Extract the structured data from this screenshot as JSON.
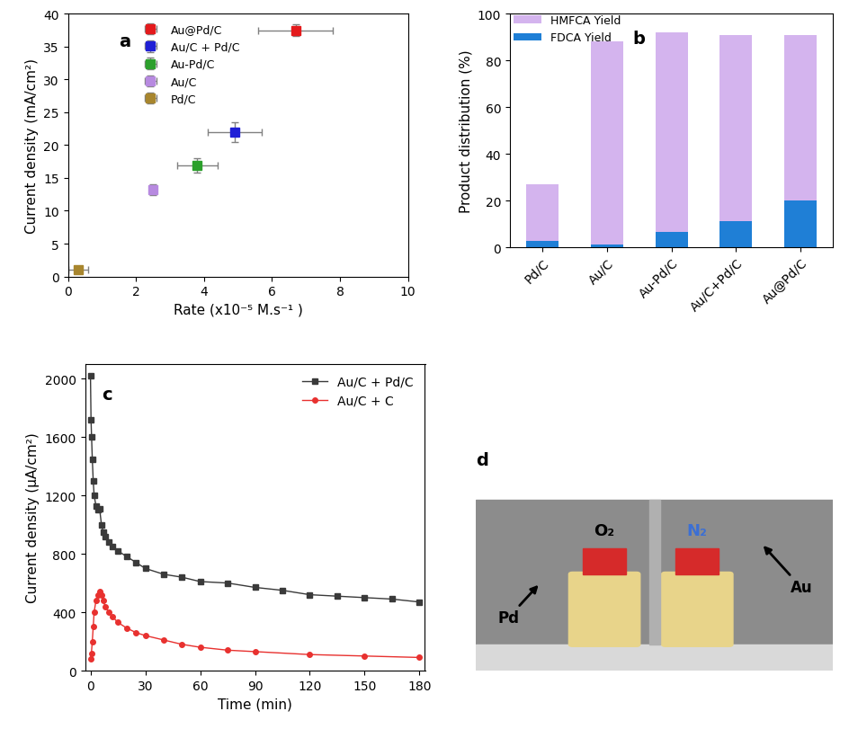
{
  "chart_data": [
    {
      "type": "scatter",
      "title": "a",
      "x_label": "Rate (x10⁻⁵ M.s⁻¹ )",
      "y_label": "Current density (mA/cm²)",
      "xlim": [
        0,
        10
      ],
      "xticks": [
        0,
        2,
        4,
        6,
        8,
        10
      ],
      "ylim": [
        0,
        40
      ],
      "yticks": [
        0,
        5,
        10,
        15,
        20,
        25,
        30,
        35,
        40
      ],
      "legend": "upper left",
      "marker": "square",
      "series": [
        {
          "name": "Au@Pd/C",
          "color": "#e41a1c",
          "x": [
            6.7
          ],
          "values": [
            37.5
          ],
          "x_error": [
            1.1
          ],
          "y_error": [
            0.9
          ]
        },
        {
          "name": "Au/C + Pd/C",
          "color": "#1f1fd6",
          "x": [
            4.9
          ],
          "values": [
            22.0
          ],
          "x_error": [
            0.8
          ],
          "y_error": [
            1.5
          ]
        },
        {
          "name": "Au-Pd/C",
          "color": "#2ca02c",
          "x": [
            3.8
          ],
          "values": [
            16.9
          ],
          "x_error": [
            0.6
          ],
          "y_error": [
            1.1
          ]
        },
        {
          "name": "Au/C",
          "color": "#b78ae0",
          "x": [
            2.5
          ],
          "values": [
            13.2
          ],
          "x_error": [
            0.1
          ],
          "y_error": [
            0.8
          ]
        },
        {
          "name": "Pd/C",
          "color": "#a8862e",
          "x": [
            0.3
          ],
          "values": [
            1.1
          ],
          "x_error": [
            0.3
          ],
          "y_error": [
            0.5
          ]
        }
      ]
    },
    {
      "type": "bar",
      "title": "b",
      "stacked": true,
      "y_label": "Product distribution (%)",
      "categories": [
        "Pd/C",
        "Au/C",
        "Au-Pd/C",
        "Au/C+Pd/C",
        "Au@Pd/C"
      ],
      "ylim": [
        0,
        100
      ],
      "yticks": [
        0,
        20,
        40,
        60,
        80,
        100
      ],
      "legend": "upper left",
      "series": [
        {
          "name": "FDCA Yield",
          "color": "#1f7fd6",
          "values": [
            2.8,
            1.0,
            6.5,
            11.0,
            20.0
          ]
        },
        {
          "name": "HMFCA Yield",
          "color": "#d4b4ee",
          "values": [
            24.2,
            87.0,
            85.5,
            80.0,
            71.0
          ]
        }
      ]
    },
    {
      "type": "line",
      "title": "c",
      "x_label": "Time (min)",
      "y_label": "Current density (μA/cm²)",
      "xlim": [
        -3,
        183
      ],
      "xticks": [
        0,
        30,
        60,
        90,
        120,
        150,
        180
      ],
      "ylim": [
        0,
        2100
      ],
      "yticks": [
        0,
        400,
        800,
        1200,
        1600,
        2000
      ],
      "legend": "upper right",
      "series": [
        {
          "name": "Au/C + Pd/C",
          "color": "#3a3a3a",
          "marker": "square",
          "x": [
            0,
            0.3,
            0.6,
            1,
            1.5,
            2,
            3,
            4,
            5,
            6,
            7,
            8,
            10,
            12,
            15,
            20,
            25,
            30,
            40,
            50,
            60,
            75,
            90,
            105,
            120,
            135,
            150,
            165,
            180
          ],
          "values": [
            2020,
            1720,
            1600,
            1450,
            1300,
            1200,
            1130,
            1100,
            1110,
            1000,
            950,
            920,
            880,
            850,
            820,
            780,
            740,
            700,
            660,
            640,
            610,
            600,
            570,
            550,
            520,
            510,
            500,
            490,
            470
          ]
        },
        {
          "name": "Au/C + C",
          "color": "#e8312f",
          "marker": "circle",
          "x": [
            0,
            0.5,
            1,
            1.5,
            2,
            3,
            4,
            5,
            6,
            7,
            8,
            10,
            12,
            15,
            20,
            25,
            30,
            40,
            50,
            60,
            75,
            90,
            120,
            150,
            180
          ],
          "values": [
            80,
            120,
            200,
            300,
            400,
            480,
            520,
            540,
            520,
            480,
            440,
            400,
            370,
            330,
            290,
            260,
            240,
            210,
            180,
            160,
            140,
            130,
            110,
            100,
            90
          ]
        }
      ]
    },
    {
      "type": "image",
      "title": "d",
      "annotations": [
        "O₂",
        "N₂",
        "Pd",
        "Au"
      ]
    }
  ]
}
